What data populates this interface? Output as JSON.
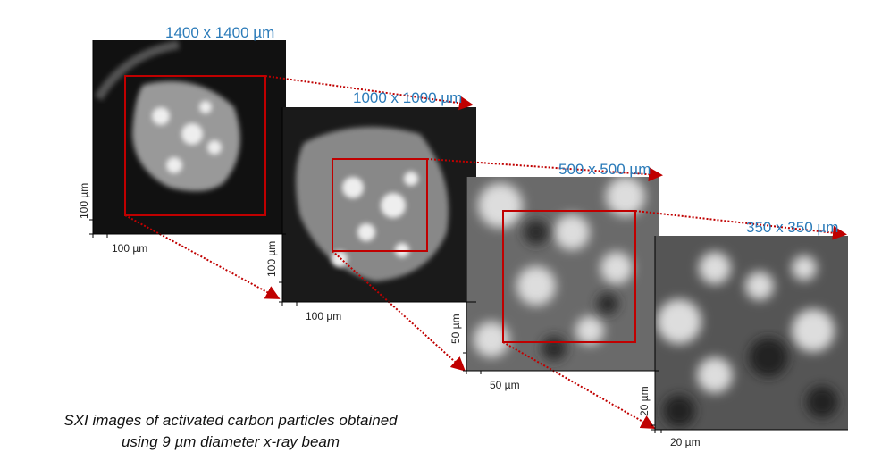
{
  "panels": [
    {
      "title": "1400 x 1400 µm",
      "scale_x": "100 µm",
      "scale_y": "100 µm"
    },
    {
      "title": "1000 x 1000 µm",
      "scale_x": "100 µm",
      "scale_y": "100 µm"
    },
    {
      "title": "500 x 500 µm",
      "scale_x": "50 µm",
      "scale_y": "50 µm"
    },
    {
      "title": "350 x 350 µm",
      "scale_x": "20 µm",
      "scale_y": "20 µm"
    }
  ],
  "caption": {
    "line1": "SXI images of activated carbon particles obtained",
    "line2": "using 9 µm diameter x-ray beam"
  },
  "colors": {
    "title": "#2b7bb9",
    "zoom_box": "#c00000"
  }
}
